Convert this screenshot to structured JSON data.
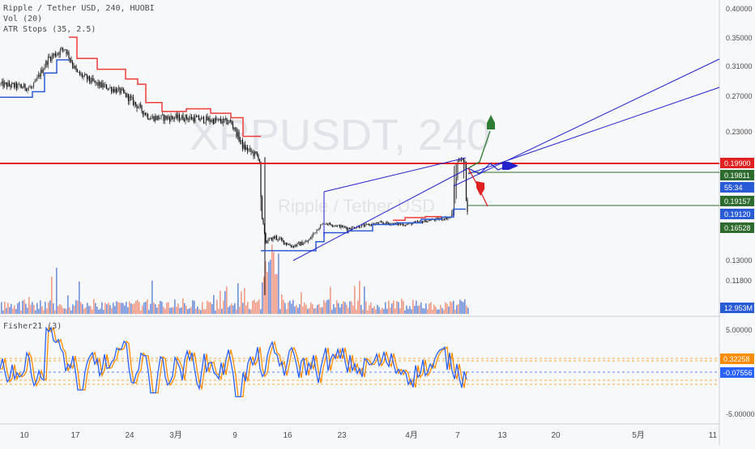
{
  "watermark": {
    "symbol": "XRPUSDT, 240",
    "name": "Ripple / Tether USD"
  },
  "legend": {
    "title": "Ripple / Tether USD, 240, HUOBI",
    "vol": "Vol (20)",
    "atr": "ATR Stops (35, 2.5)",
    "fisher": "Fisher21 (3)"
  },
  "colors": {
    "up": "#4a4a4a",
    "down": "#111111",
    "atr_resist": "#ef3b3b",
    "atr_support": "#2a5bd7",
    "channel": "#2222cc",
    "hline_red": "#e02020",
    "hline_green": "#2e6b2e",
    "fisher1": "#2962ff",
    "fisher2": "#ff8c00",
    "vol_up": "#5b7fd6",
    "vol_down": "#f08a70"
  },
  "axis": {
    "price_ticks": [
      "0.40000",
      "0.35000",
      "0.31000",
      "0.27000",
      "0.23000",
      "0.13000",
      "0.11800"
    ],
    "fisher_ticks": [
      "5.00000",
      "0.00000",
      "-5.00000"
    ],
    "time_ticks": [
      "10",
      "17",
      "24",
      "3月",
      "9",
      "16",
      "23",
      "4月",
      "7",
      "13",
      "20",
      "5月",
      "11"
    ]
  },
  "price_badges": [
    {
      "text": "0.19900",
      "bg": "#e02020",
      "fg": "#ffffff"
    },
    {
      "text": "0.19811",
      "bg": "#2e6b2e",
      "fg": "#ffffff"
    },
    {
      "text": "55:34",
      "bg": "#2a5bd7",
      "fg": "#ffffff"
    },
    {
      "text": "0.19157",
      "bg": "#2e6b2e",
      "fg": "#ffffff"
    },
    {
      "text": "0.19120",
      "bg": "#2a5bd7",
      "fg": "#ffffff"
    },
    {
      "text": "0.16528",
      "bg": "#2e6b2e",
      "fg": "#ffffff"
    },
    {
      "text": "12.953M",
      "bg": "#2a5bd7",
      "fg": "#ffffff"
    }
  ],
  "fisher_badges": [
    {
      "text": "0.32258",
      "bg": "#ff8c00",
      "fg": "#ffffff"
    },
    {
      "text": "-0.07556",
      "bg": "#2962ff",
      "fg": "#ffffff"
    }
  ],
  "chart_data": {
    "type": "line",
    "x": [
      "10",
      "17",
      "24",
      "3月",
      "9",
      "16",
      "23",
      "4月",
      "7"
    ],
    "series": [
      {
        "values": [
          0.285,
          0.335,
          0.285,
          0.245,
          0.2375,
          0.1525,
          0.1725,
          0.1825,
          0.1975
        ]
      }
    ],
    "ylim": [
      0.1,
      0.41
    ],
    "levels": [
      0.199,
      0.19811,
      0.19157,
      0.1912,
      0.16528
    ],
    "volume_last": "12.953M",
    "fisher_last": [
      0.32258,
      -0.07556
    ],
    "grid": false
  }
}
